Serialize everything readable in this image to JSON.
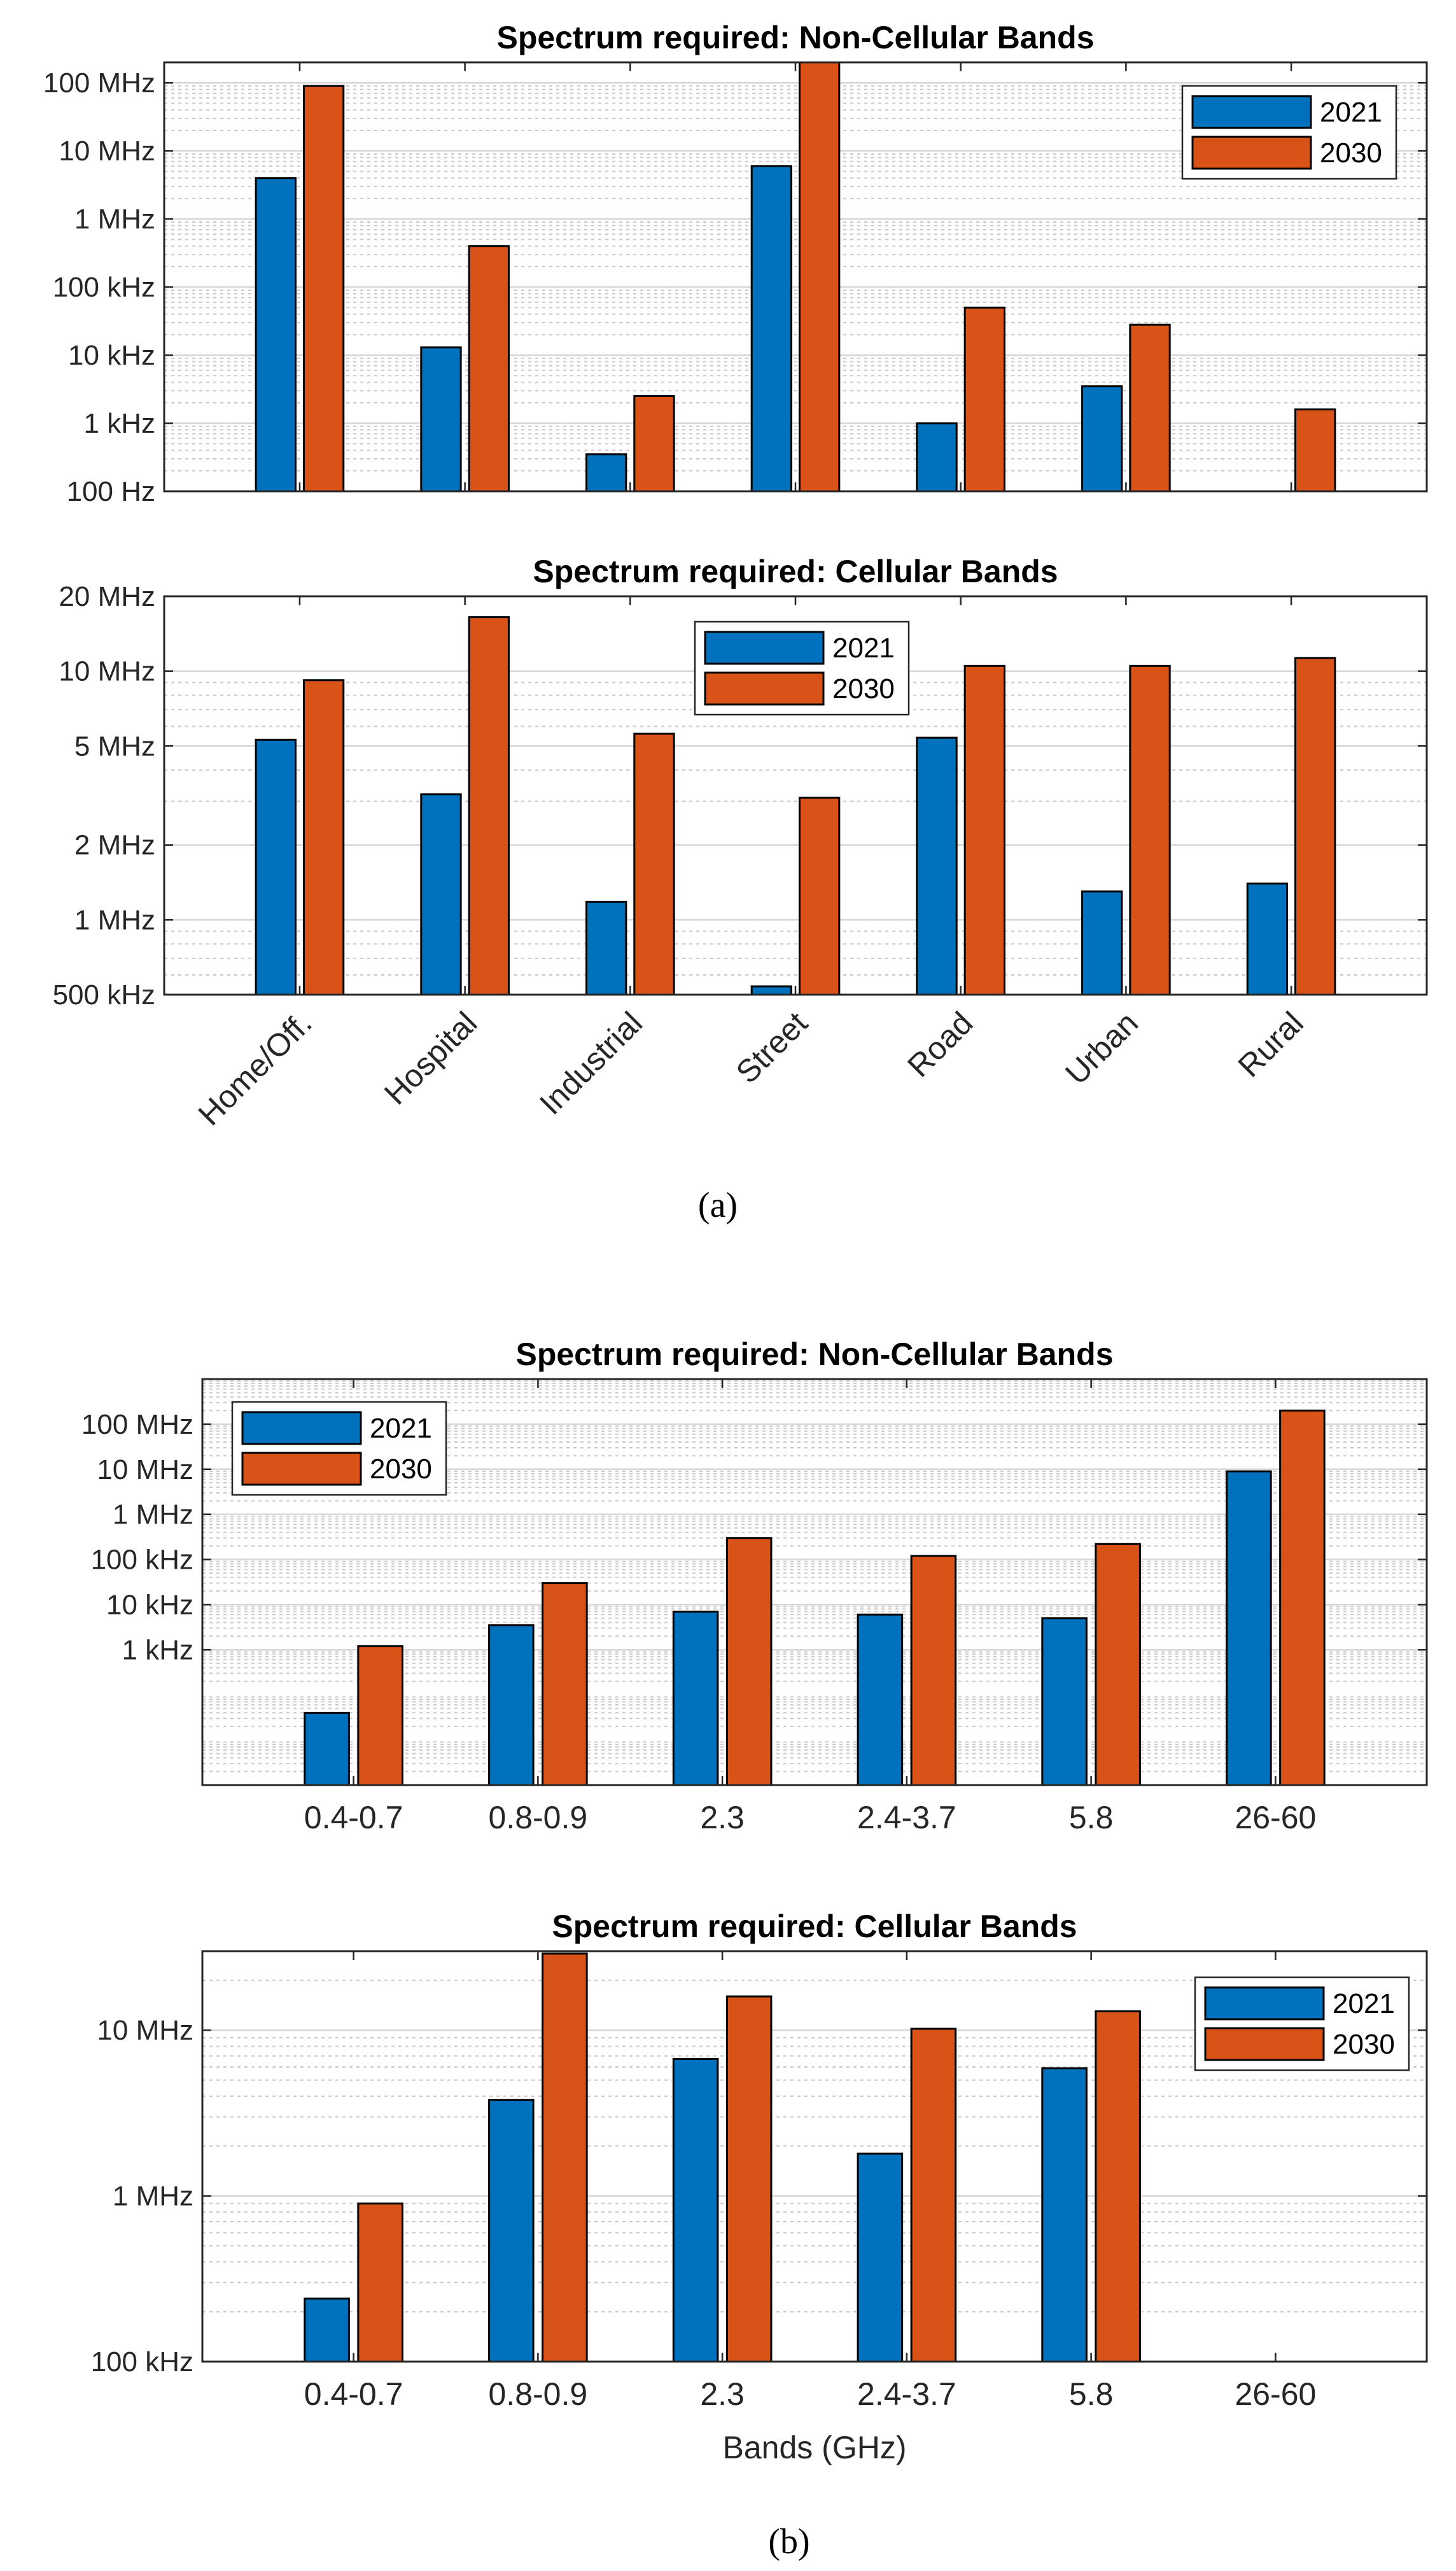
{
  "colors": {
    "series_2021": "#0072BD",
    "series_2030": "#D95319"
  },
  "captions": {
    "a": "(a)",
    "b": "(b)"
  },
  "chart_data": [
    {
      "id": "a1",
      "type": "bar",
      "title": "Spectrum required: Non-Cellular Bands",
      "xlabel": "",
      "ylabel": "",
      "yscale": "log",
      "ylim": [
        100,
        200000000
      ],
      "yticks": [
        100,
        1000,
        10000,
        100000,
        1000000,
        10000000,
        100000000
      ],
      "ytick_labels": [
        "100 Hz",
        "1 kHz",
        "10 kHz",
        "100 kHz",
        "1 MHz",
        "10 MHz",
        "100 MHz"
      ],
      "categories": [
        "Home/Off.",
        "Hospital",
        "Industrial",
        "Street",
        "Road",
        "Urban",
        "Rural"
      ],
      "show_xtick_labels": false,
      "legend_position": "top-right",
      "series": [
        {
          "name": "2021",
          "values": [
            4000000,
            13000,
            350,
            6000000,
            1000,
            3500,
            90
          ]
        },
        {
          "name": "2030",
          "values": [
            90000000,
            400000,
            2500,
            200000000,
            50000,
            28000,
            1600
          ]
        }
      ]
    },
    {
      "id": "a2",
      "type": "bar",
      "title": "Spectrum required: Cellular Bands",
      "xlabel": "",
      "ylabel": "",
      "yscale": "log",
      "ylim": [
        500000,
        20000000
      ],
      "yticks": [
        500000,
        1000000,
        2000000,
        5000000,
        10000000,
        20000000
      ],
      "ytick_labels": [
        "500 kHz",
        "1 MHz",
        "2 MHz",
        "5 MHz",
        "10 MHz",
        "20 MHz"
      ],
      "categories": [
        "Home/Off.",
        "Hospital",
        "Industrial",
        "Street",
        "Road",
        "Urban",
        "Rural"
      ],
      "show_xtick_labels": true,
      "xtick_rotation": "rotated 45 degrees",
      "legend_position": "top-center",
      "series": [
        {
          "name": "2021",
          "values": [
            5300000,
            3200000,
            1180000,
            540000,
            5400000,
            1300000,
            1400000
          ]
        },
        {
          "name": "2030",
          "values": [
            9200000,
            16500000,
            5600000,
            3100000,
            10500000,
            10500000,
            11300000
          ]
        }
      ]
    },
    {
      "id": "b1",
      "type": "bar",
      "title": "Spectrum required: Non-Cellular Bands",
      "xlabel": "",
      "ylabel": "",
      "yscale": "log",
      "ylim": [
        1,
        1000000000
      ],
      "yticks": [
        1000,
        10000,
        100000,
        1000000,
        10000000,
        100000000
      ],
      "ytick_labels": [
        "1 kHz",
        "10 kHz",
        "100 kHz",
        "1 MHz",
        "10 MHz",
        "100 MHz"
      ],
      "categories": [
        "0.4-0.7",
        "0.8-0.9",
        "2.3",
        "2.4-3.7",
        "5.8",
        "26-60"
      ],
      "show_xtick_labels": true,
      "legend_position": "top-left",
      "series": [
        {
          "name": "2021",
          "values": [
            40,
            3500,
            7000,
            6000,
            5000,
            9000000
          ]
        },
        {
          "name": "2030",
          "values": [
            1200,
            30000,
            300000,
            120000,
            220000,
            200000000
          ]
        }
      ]
    },
    {
      "id": "b2",
      "type": "bar",
      "title": "Spectrum required: Cellular Bands",
      "xlabel": "Bands (GHz)",
      "ylabel": "",
      "yscale": "log",
      "ylim": [
        100000,
        30000000
      ],
      "yticks": [
        100000,
        1000000,
        10000000
      ],
      "ytick_labels": [
        "100 kHz",
        "1 MHz",
        "10 MHz"
      ],
      "categories": [
        "0.4-0.7",
        "0.8-0.9",
        "2.3",
        "2.4-3.7",
        "5.8",
        "26-60"
      ],
      "show_xtick_labels": true,
      "legend_position": "top-right",
      "series": [
        {
          "name": "2021",
          "values": [
            240000,
            3800000,
            6700000,
            1800000,
            5900000,
            null
          ]
        },
        {
          "name": "2030",
          "values": [
            900000,
            29000000,
            16000000,
            10200000,
            13000000,
            null
          ]
        }
      ]
    }
  ]
}
